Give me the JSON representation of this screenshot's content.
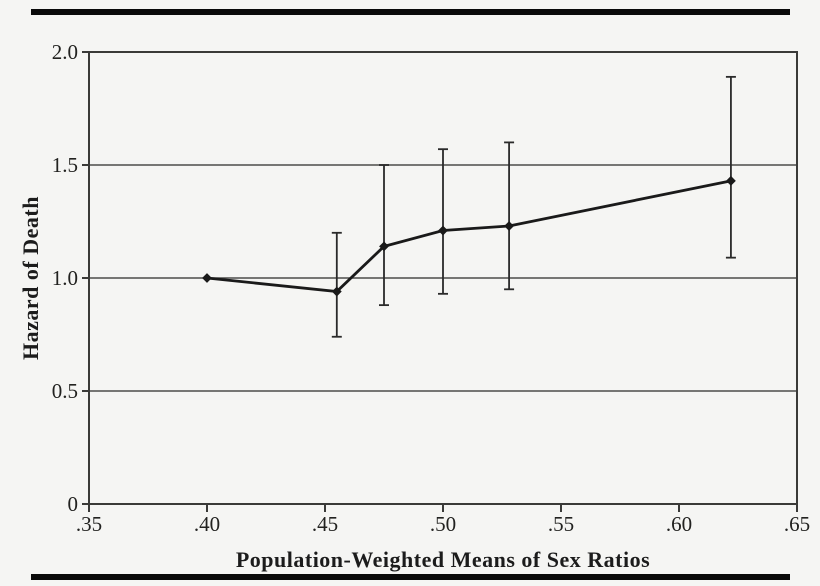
{
  "chart_data": {
    "type": "line",
    "title": "",
    "xlabel": "Population-Weighted Means of Sex Ratios",
    "ylabel": "Hazard of Death",
    "xlim": [
      0.35,
      0.65
    ],
    "ylim": [
      0,
      2.0
    ],
    "x_tick_labels": [
      ".35",
      ".40",
      ".45",
      ".50",
      ".55",
      ".60",
      ".65"
    ],
    "x_tick_values": [
      0.35,
      0.4,
      0.45,
      0.5,
      0.55,
      0.6,
      0.65
    ],
    "y_tick_labels": [
      "0",
      "0.5",
      "1.0",
      "1.5",
      "2.0"
    ],
    "y_tick_values": [
      0,
      0.5,
      1.0,
      1.5,
      2.0
    ],
    "gridlines_y": [
      0.5,
      1.0,
      1.5
    ],
    "grid": "horizontal gridlines at 0.5, 1.0, 1.5; full rectangular plot border",
    "legend": "none",
    "series": [
      {
        "name": "Hazard of Death (with confidence interval error bars)",
        "x": [
          0.4,
          0.455,
          0.475,
          0.5,
          0.528,
          0.622
        ],
        "y": [
          1.0,
          0.94,
          1.14,
          1.21,
          1.23,
          1.43
        ],
        "ci_low": [
          1.0,
          0.74,
          0.88,
          0.93,
          0.95,
          1.09
        ],
        "ci_high": [
          1.0,
          1.2,
          1.5,
          1.57,
          1.6,
          1.89
        ]
      }
    ],
    "colors": {
      "background": "#f5f5f3",
      "line": "#1a1a1a",
      "marker": "#1a1a1a",
      "error_bar": "#2a2a2a",
      "gridline": "#4d4d4b",
      "axis_border": "#3a3a38",
      "rule_bar": "#0a0a0a"
    }
  }
}
